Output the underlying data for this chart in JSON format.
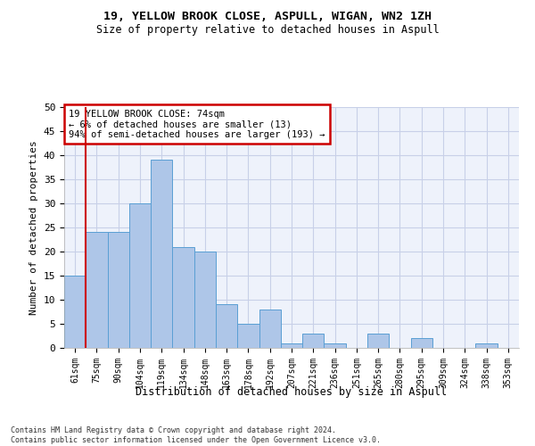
{
  "title": "19, YELLOW BROOK CLOSE, ASPULL, WIGAN, WN2 1ZH",
  "subtitle": "Size of property relative to detached houses in Aspull",
  "xlabel": "Distribution of detached houses by size in Aspull",
  "ylabel": "Number of detached properties",
  "bar_labels": [
    "61sqm",
    "75sqm",
    "90sqm",
    "104sqm",
    "119sqm",
    "134sqm",
    "148sqm",
    "163sqm",
    "178sqm",
    "192sqm",
    "207sqm",
    "221sqm",
    "236sqm",
    "251sqm",
    "265sqm",
    "280sqm",
    "295sqm",
    "309sqm",
    "324sqm",
    "338sqm",
    "353sqm"
  ],
  "bar_values": [
    15,
    24,
    24,
    30,
    39,
    21,
    20,
    9,
    5,
    8,
    1,
    3,
    1,
    0,
    3,
    0,
    2,
    0,
    0,
    1,
    0
  ],
  "bar_color": "#aec6e8",
  "bar_edge_color": "#5a9fd4",
  "annotation_title": "19 YELLOW BROOK CLOSE: 74sqm",
  "annotation_line1": "← 6% of detached houses are smaller (13)",
  "annotation_line2": "94% of semi-detached houses are larger (193) →",
  "annotation_box_color": "#ffffff",
  "annotation_border_color": "#cc0000",
  "ylim": [
    0,
    50
  ],
  "yticks": [
    0,
    5,
    10,
    15,
    20,
    25,
    30,
    35,
    40,
    45,
    50
  ],
  "background_color": "#eef2fb",
  "grid_color": "#c8d0e8",
  "footer_line1": "Contains HM Land Registry data © Crown copyright and database right 2024.",
  "footer_line2": "Contains public sector information licensed under the Open Government Licence v3.0."
}
